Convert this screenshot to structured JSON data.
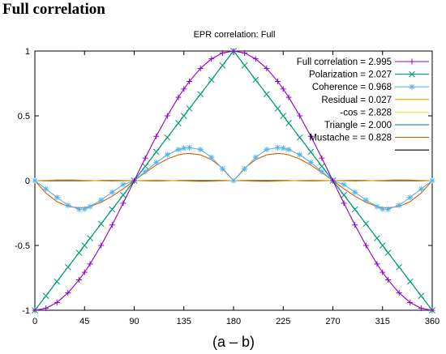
{
  "heading": "Full correlation",
  "chart_data": {
    "type": "line",
    "title": "EPR correlation: Full",
    "xlabel": "(a – b)",
    "ylabel": "",
    "xlim": [
      0,
      360
    ],
    "ylim": [
      -1,
      1
    ],
    "xticks": [
      0,
      45,
      90,
      135,
      180,
      225,
      270,
      315,
      360
    ],
    "yticks": [
      -1,
      -0.5,
      0,
      0.5,
      1
    ],
    "ytick_labels": [
      "-1",
      "-0.5",
      "0",
      "0.5",
      "1"
    ],
    "grid": false,
    "legend_position": "top-right",
    "x": [
      0,
      10,
      20,
      30,
      40,
      45,
      50,
      60,
      70,
      80,
      90,
      100,
      110,
      120,
      130,
      135,
      140,
      150,
      160,
      170,
      180,
      190,
      200,
      210,
      220,
      225,
      230,
      240,
      250,
      260,
      270,
      280,
      290,
      300,
      310,
      315,
      320,
      330,
      340,
      350,
      360
    ],
    "series": [
      {
        "name": "Full correlation = 2.995",
        "color": "#9400d3",
        "marker": "plus",
        "values": [
          -1.0,
          -0.985,
          -0.94,
          -0.866,
          -0.766,
          -0.707,
          -0.643,
          -0.5,
          -0.342,
          -0.174,
          0.0,
          0.174,
          0.342,
          0.5,
          0.643,
          0.707,
          0.766,
          0.866,
          0.94,
          0.985,
          1.0,
          0.985,
          0.94,
          0.866,
          0.766,
          0.707,
          0.643,
          0.5,
          0.342,
          0.174,
          0.0,
          -0.174,
          -0.342,
          -0.5,
          -0.643,
          -0.707,
          -0.766,
          -0.866,
          -0.94,
          -0.985,
          -1.0
        ]
      },
      {
        "name": "Polarization = 2.027",
        "color": "#009e73",
        "marker": "cross",
        "values": [
          -1.0,
          -0.889,
          -0.778,
          -0.667,
          -0.556,
          -0.5,
          -0.444,
          -0.333,
          -0.222,
          -0.111,
          0.0,
          0.111,
          0.222,
          0.333,
          0.444,
          0.5,
          0.556,
          0.667,
          0.778,
          0.889,
          1.0,
          0.889,
          0.778,
          0.667,
          0.556,
          0.5,
          0.444,
          0.333,
          0.222,
          0.111,
          0.0,
          -0.111,
          -0.222,
          -0.333,
          -0.444,
          -0.5,
          -0.556,
          -0.667,
          -0.778,
          -0.889,
          -1.0
        ]
      },
      {
        "name": "Coherence = 0.968",
        "color": "#56b4e9",
        "marker": "star",
        "values": [
          0.0,
          -0.064,
          -0.129,
          -0.19,
          -0.22,
          -0.22,
          -0.2,
          -0.15,
          -0.09,
          -0.03,
          0.0,
          0.07,
          0.14,
          0.2,
          0.24,
          0.25,
          0.255,
          0.24,
          0.18,
          0.09,
          0.0,
          0.09,
          0.18,
          0.24,
          0.255,
          0.25,
          0.24,
          0.2,
          0.14,
          0.07,
          0.0,
          -0.03,
          -0.09,
          -0.15,
          -0.2,
          -0.22,
          -0.22,
          -0.19,
          -0.129,
          -0.064,
          0.0
        ]
      },
      {
        "name": "Residual = 0.027",
        "color": "#e69f00",
        "marker": "none",
        "values": [
          0.0,
          0.003,
          0.005,
          0.006,
          0.004,
          0.003,
          0.002,
          -0.002,
          -0.004,
          -0.002,
          0.0,
          0.002,
          0.004,
          0.002,
          -0.002,
          -0.003,
          -0.004,
          -0.006,
          -0.005,
          -0.003,
          0.0,
          -0.003,
          -0.005,
          -0.006,
          -0.004,
          -0.003,
          -0.002,
          0.002,
          0.004,
          0.002,
          0.0,
          -0.002,
          -0.004,
          -0.002,
          0.002,
          0.003,
          0.004,
          0.006,
          0.005,
          0.003,
          0.0
        ]
      },
      {
        "name": "-cos = 2.828",
        "color": "#f0e442",
        "marker": "none",
        "values": [
          -1.0,
          -0.985,
          -0.94,
          -0.866,
          -0.766,
          -0.707,
          -0.643,
          -0.5,
          -0.342,
          -0.174,
          0.0,
          0.174,
          0.342,
          0.5,
          0.643,
          0.707,
          0.766,
          0.866,
          0.94,
          0.985,
          1.0,
          0.985,
          0.94,
          0.866,
          0.766,
          0.707,
          0.643,
          0.5,
          0.342,
          0.174,
          0.0,
          -0.174,
          -0.342,
          -0.5,
          -0.643,
          -0.707,
          -0.766,
          -0.866,
          -0.94,
          -0.985,
          -1.0
        ]
      },
      {
        "name": "Triangle = 2.000",
        "color": "#0072b2",
        "marker": "none",
        "values": [
          -1.0,
          -0.889,
          -0.778,
          -0.667,
          -0.556,
          -0.5,
          -0.444,
          -0.333,
          -0.222,
          -0.111,
          0.0,
          0.111,
          0.222,
          0.333,
          0.444,
          0.5,
          0.556,
          0.667,
          0.778,
          0.889,
          1.0,
          0.889,
          0.778,
          0.667,
          0.556,
          0.5,
          0.444,
          0.333,
          0.222,
          0.111,
          0.0,
          -0.111,
          -0.222,
          -0.333,
          -0.444,
          -0.5,
          -0.556,
          -0.667,
          -0.778,
          -0.889,
          -1.0
        ]
      },
      {
        "name": "Mustache = = 0.828",
        "color": "#d55e00",
        "marker": "none",
        "values": [
          0.0,
          -0.096,
          -0.162,
          -0.199,
          -0.21,
          -0.207,
          -0.199,
          -0.167,
          -0.12,
          -0.063,
          0.0,
          0.063,
          0.12,
          0.167,
          0.199,
          0.207,
          0.21,
          0.199,
          0.162,
          0.096,
          0.0,
          0.096,
          0.162,
          0.199,
          0.21,
          0.207,
          0.199,
          0.167,
          0.12,
          0.063,
          0.0,
          -0.063,
          -0.12,
          -0.167,
          -0.199,
          -0.207,
          -0.21,
          -0.199,
          -0.162,
          -0.096,
          0.0
        ]
      },
      {
        "name": "",
        "color": "#000000",
        "marker": "none",
        "values": [
          0,
          0,
          0,
          0,
          0,
          0,
          0,
          0,
          0,
          0,
          0,
          0,
          0,
          0,
          0,
          0,
          0,
          0,
          0,
          0,
          0,
          0,
          0,
          0,
          0,
          0,
          0,
          0,
          0,
          0,
          0,
          0,
          0,
          0,
          0,
          0,
          0,
          0,
          0,
          0,
          0
        ]
      }
    ]
  }
}
